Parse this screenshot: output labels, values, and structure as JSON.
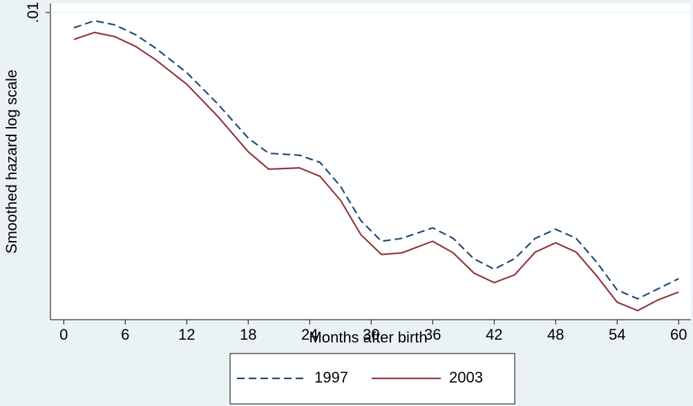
{
  "chart_data": {
    "type": "line",
    "x_label": "Months after birth",
    "y_label": "Smoothed hazard log scale",
    "x": [
      1,
      3,
      5,
      7,
      9,
      12,
      15,
      18,
      20,
      23,
      25,
      27,
      29,
      31,
      33,
      36,
      38,
      40,
      42,
      44,
      46,
      48,
      50,
      52,
      54,
      56,
      58,
      60
    ],
    "series": [
      {
        "name": "1997",
        "color": "#1a476f",
        "dash": true,
        "values": [
          0.00892,
          0.0094,
          0.00911,
          0.00847,
          0.00764,
          0.00637,
          0.00505,
          0.0039,
          0.00348,
          0.00343,
          0.00325,
          0.00272,
          0.0021,
          0.0018,
          0.00184,
          0.00199,
          0.00184,
          0.00158,
          0.00146,
          0.00158,
          0.00184,
          0.00197,
          0.00184,
          0.00154,
          0.00125,
          0.00117,
          0.00126,
          0.00136
        ]
      },
      {
        "name": "2003",
        "color": "#90353b",
        "dash": false,
        "values": [
          0.00817,
          0.00861,
          0.00834,
          0.00776,
          0.007,
          0.00584,
          0.0046,
          0.00352,
          0.00309,
          0.00312,
          0.00293,
          0.00245,
          0.00189,
          0.00163,
          0.00165,
          0.0018,
          0.00165,
          0.00142,
          0.00132,
          0.0014,
          0.00166,
          0.00178,
          0.00166,
          0.00139,
          0.00114,
          0.00107,
          0.00116,
          0.00123
        ]
      }
    ],
    "xlim": [
      -1.3,
      61.2
    ],
    "xticks": [
      0,
      6,
      12,
      18,
      24,
      30,
      36,
      42,
      48,
      54,
      60
    ],
    "ylim": [
      0.001,
      0.0107
    ],
    "yticks": [
      {
        "value": 0.01,
        "label": ".01"
      }
    ],
    "yscale": "log",
    "grid": true,
    "legend": "bottom"
  }
}
